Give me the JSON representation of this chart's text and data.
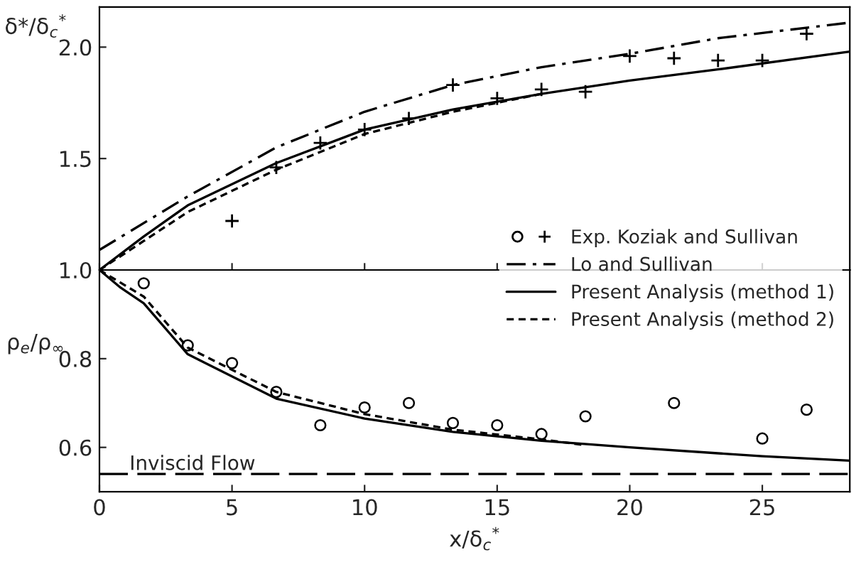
{
  "chart_data": [
    {
      "type": "line",
      "ylabel": "δ*/δ$_{c}$$^{*}$",
      "xlim": [
        0,
        28.3
      ],
      "xticks": [
        0,
        5,
        10,
        15,
        20,
        25
      ],
      "ylim": [
        1.0,
        2.18
      ],
      "yticks": [
        {
          "value": 1.5,
          "label": "1.5"
        },
        {
          "value": 2.0,
          "label": "2.0"
        }
      ],
      "tick_labels": "y",
      "grid": false,
      "legend": "bottom right",
      "series": [
        {
          "name": "Exp. Koziak and Sullivan",
          "type": "scatter",
          "marker": "cross",
          "color": "#000000",
          "x": [
            5,
            6.67,
            8.33,
            10,
            11.67,
            13.33,
            15,
            16.67,
            18.33,
            20,
            21.67,
            23.33,
            25,
            26.67
          ],
          "values": [
            1.22,
            1.46,
            1.57,
            1.63,
            1.68,
            1.83,
            1.77,
            1.81,
            1.8,
            1.96,
            1.95,
            1.94,
            1.94,
            2.06
          ]
        },
        {
          "name": "Lo and Sullivan",
          "line_style": "dashdot",
          "color": "#000000",
          "x": [
            0,
            3.33,
            6.67,
            10,
            13.33,
            16.67,
            20,
            23.33,
            28.3
          ],
          "values": [
            1.09,
            1.33,
            1.55,
            1.71,
            1.83,
            1.91,
            1.97,
            2.04,
            2.11
          ]
        },
        {
          "name": "Present Analysis (method 1)",
          "line_style": "solid",
          "color": "#000000",
          "x": [
            0,
            1.67,
            3.33,
            6.67,
            10,
            13.33,
            16.67,
            20,
            23.33,
            28.3
          ],
          "values": [
            1.0,
            1.15,
            1.29,
            1.48,
            1.63,
            1.72,
            1.79,
            1.85,
            1.9,
            1.98
          ]
        },
        {
          "name": "Present Analysis (method 2)",
          "line_style": "dashed",
          "color": "#000000",
          "x": [
            0,
            1.67,
            3.33,
            6.67,
            10,
            13.33,
            16.67
          ],
          "values": [
            1.0,
            1.13,
            1.26,
            1.45,
            1.61,
            1.71,
            1.79
          ]
        }
      ]
    },
    {
      "type": "line",
      "xlabel": "x/δ$_{c}$$^{*}$",
      "ylabel": "ρ$_{e}$/ρ$_{∞}$",
      "xlim": [
        0,
        28.3
      ],
      "xticks": [
        0,
        5,
        10,
        15,
        20,
        25
      ],
      "ylim": [
        0.5,
        1.0
      ],
      "yticks": [
        {
          "value": 0.6,
          "label": "0.6"
        },
        {
          "value": 0.8,
          "label": "0.8"
        },
        {
          "value": 1.0,
          "label": "1.0"
        }
      ],
      "grid": false,
      "ref_lines": [
        {
          "axis": "y",
          "value": 0.54,
          "label": "Inviscid Flow",
          "line_style": "dashed",
          "color": "#000000"
        }
      ],
      "series": [
        {
          "name": "Exp. Koziak and Sullivan",
          "type": "scatter",
          "marker": "circle",
          "color": "#000000",
          "x": [
            1.67,
            3.33,
            5,
            6.67,
            8.33,
            10,
            11.67,
            13.33,
            15,
            16.67,
            18.33,
            21.67,
            25,
            26.67
          ],
          "values": [
            0.97,
            0.83,
            0.79,
            0.725,
            0.65,
            0.69,
            0.7,
            0.655,
            0.65,
            0.63,
            0.67,
            0.7,
            0.62,
            0.685
          ]
        },
        {
          "line_style": "solid",
          "color": "#000000",
          "x": [
            0,
            0.8,
            1.67,
            3.33,
            6.67,
            10,
            13.33,
            16.67,
            20,
            25,
            28.3
          ],
          "values": [
            1.0,
            0.96,
            0.925,
            0.81,
            0.71,
            0.665,
            0.635,
            0.615,
            0.6,
            0.58,
            0.57
          ]
        },
        {
          "line_style": "dashed",
          "color": "#000000",
          "x": [
            0,
            1.67,
            3.33,
            6.67,
            10,
            13.33,
            16.67,
            18.33
          ],
          "values": [
            1.0,
            0.94,
            0.825,
            0.725,
            0.675,
            0.64,
            0.618,
            0.605
          ]
        }
      ]
    }
  ]
}
